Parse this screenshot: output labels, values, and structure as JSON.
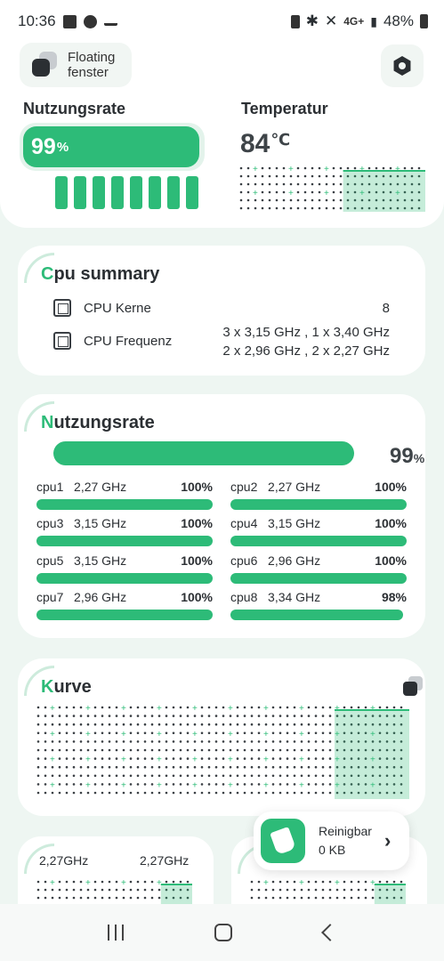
{
  "status_bar": {
    "time": "10:36",
    "battery": "48%",
    "network": "4G+"
  },
  "floating": {
    "label_line1": "Floating",
    "label_line2": "fenster"
  },
  "top": {
    "usage_label": "Nutzungsrate",
    "usage_value": "99",
    "usage_unit": "%",
    "usage_fraction": 0.99,
    "temp_label": "Temperatur",
    "temp_value": "84",
    "temp_unit": "℃"
  },
  "cpu_summary": {
    "title_first": "C",
    "title_rest": "pu summary",
    "cores_label": "CPU Kerne",
    "cores_value": "8",
    "freq_label": "CPU Frequenz",
    "freq_line1": "3 x 3,15 GHz , 1 x 3,40 GHz",
    "freq_line2": "2 x 2,96 GHz , 2 x 2,27 GHz"
  },
  "usage_card": {
    "title_first": "N",
    "title_rest": "utzungsrate",
    "total_value": "99",
    "total_unit": "%",
    "cores": [
      {
        "name": "cpu1",
        "freq": "2,27 GHz",
        "pct": "100%",
        "fraction": 1.0
      },
      {
        "name": "cpu2",
        "freq": "2,27 GHz",
        "pct": "100%",
        "fraction": 1.0
      },
      {
        "name": "cpu3",
        "freq": "3,15 GHz",
        "pct": "100%",
        "fraction": 1.0
      },
      {
        "name": "cpu4",
        "freq": "3,15 GHz",
        "pct": "100%",
        "fraction": 1.0
      },
      {
        "name": "cpu5",
        "freq": "3,15 GHz",
        "pct": "100%",
        "fraction": 1.0
      },
      {
        "name": "cpu6",
        "freq": "2,96 GHz",
        "pct": "100%",
        "fraction": 1.0
      },
      {
        "name": "cpu7",
        "freq": "2,96 GHz",
        "pct": "100%",
        "fraction": 1.0
      },
      {
        "name": "cpu8",
        "freq": "3,34 GHz",
        "pct": "98%",
        "fraction": 0.98
      }
    ]
  },
  "curve_card": {
    "title_first": "K",
    "title_rest": "urve"
  },
  "clean": {
    "label": "Reinigbar",
    "value": "0 KB"
  },
  "mini_cards": [
    {
      "left": "2,27GHz",
      "right": "2,27GHz"
    }
  ],
  "colors": {
    "accent": "#2dbb78",
    "accent_light": "#cdebdc",
    "background": "#eef6f2"
  }
}
